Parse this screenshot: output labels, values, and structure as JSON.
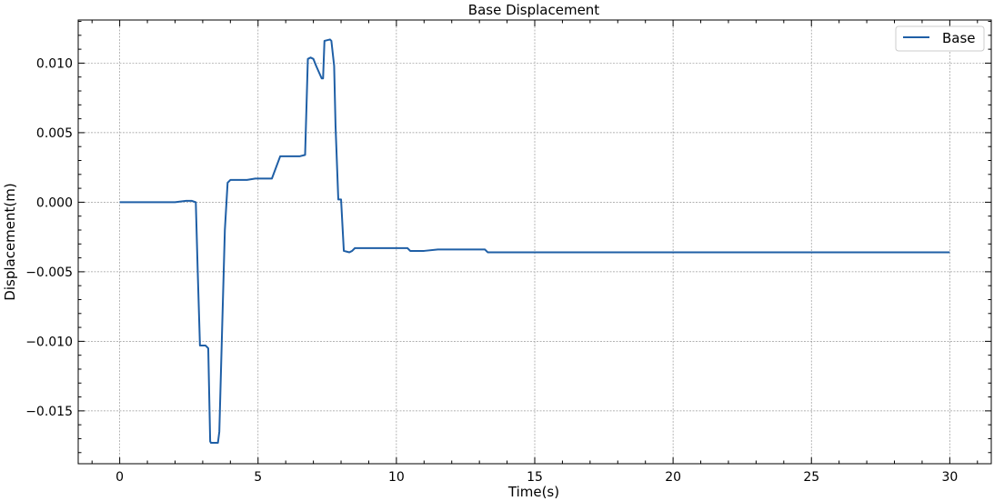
{
  "chart_data": {
    "type": "line",
    "title": "Base Displacement",
    "xlabel": "Time(s)",
    "ylabel": "Displacement(m)",
    "xlim": [
      -1.5,
      31.5
    ],
    "ylim": [
      -0.0188,
      0.0131
    ],
    "xticks": [
      0,
      5,
      10,
      15,
      20,
      25,
      30
    ],
    "xtick_labels": [
      "0",
      "5",
      "10",
      "15",
      "20",
      "25",
      "30"
    ],
    "yticks": [
      -0.015,
      -0.01,
      -0.005,
      0.0,
      0.005,
      0.01
    ],
    "ytick_labels": [
      "−0.015",
      "−0.010",
      "−0.005",
      "0.000",
      "0.005",
      "0.010"
    ],
    "grid": true,
    "legend_position": "top-right",
    "colors": {
      "series": "#1f5fa6",
      "grid": "#999999",
      "axis": "#000000"
    },
    "series": [
      {
        "name": "Base",
        "x": [
          0,
          1.0,
          2.0,
          2.4,
          2.6,
          2.75,
          2.82,
          2.9,
          3.0,
          3.1,
          3.2,
          3.27,
          3.3,
          3.4,
          3.55,
          3.6,
          3.7,
          3.8,
          3.9,
          4.0,
          4.1,
          4.3,
          4.6,
          4.9,
          5.0,
          5.3,
          5.5,
          5.8,
          6.2,
          6.4,
          6.5,
          6.7,
          6.8,
          6.9,
          7.0,
          7.1,
          7.3,
          7.35,
          7.4,
          7.6,
          7.65,
          7.75,
          7.8,
          7.9,
          8.0,
          8.1,
          8.3,
          8.4,
          8.5,
          9.0,
          9.5,
          10.0,
          10.4,
          10.5,
          11.0,
          11.5,
          12.0,
          13.2,
          13.3,
          14.0,
          15.0,
          17.0,
          20.0,
          25.0,
          27.0,
          30.0
        ],
        "y": [
          0.0,
          0.0,
          0.0,
          0.0001,
          0.0001,
          0.0,
          -0.005,
          -0.0103,
          -0.0103,
          -0.0103,
          -0.0105,
          -0.0172,
          -0.0173,
          -0.0173,
          -0.0173,
          -0.0165,
          -0.0092,
          -0.002,
          0.0014,
          0.0016,
          0.0016,
          0.0016,
          0.0016,
          0.0017,
          0.0017,
          0.0017,
          0.0017,
          0.0033,
          0.0033,
          0.0033,
          0.0033,
          0.0034,
          0.0103,
          0.0104,
          0.0103,
          0.0098,
          0.0089,
          0.0089,
          0.0116,
          0.0117,
          0.0116,
          0.0098,
          0.0055,
          0.0002,
          0.0002,
          -0.0035,
          -0.0036,
          -0.0035,
          -0.0033,
          -0.0033,
          -0.0033,
          -0.0033,
          -0.0033,
          -0.0035,
          -0.0035,
          -0.0034,
          -0.0034,
          -0.0034,
          -0.0036,
          -0.0036,
          -0.0036,
          -0.0036,
          -0.0036,
          -0.0036,
          -0.0036,
          -0.0036
        ]
      }
    ]
  }
}
